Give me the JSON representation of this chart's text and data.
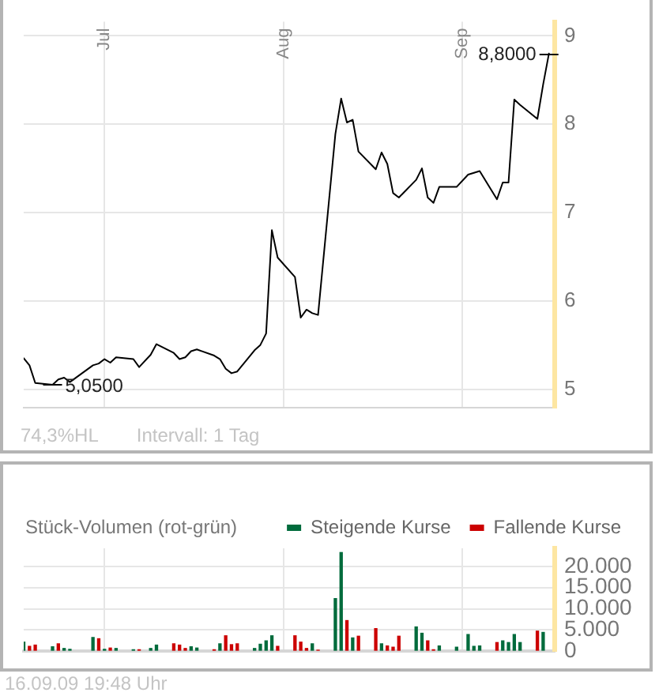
{
  "chart_data": [
    {
      "type": "line",
      "x": [
        "--06-17",
        "--06-18",
        "--06-19",
        "--06-22",
        "--06-23",
        "--06-24",
        "--06-25",
        "--06-29",
        "--06-30",
        "--07-01",
        "--07-02",
        "--07-03",
        "--07-06",
        "--07-07",
        "--07-09",
        "--07-10",
        "--07-13",
        "--07-14",
        "--07-15",
        "--07-16",
        "--07-17",
        "--07-20",
        "--07-21",
        "--07-22",
        "--07-23",
        "--07-24",
        "--07-27",
        "--07-28",
        "--07-29",
        "--07-30",
        "--07-31",
        "--08-03",
        "--08-04",
        "--08-05",
        "--08-06",
        "--08-07",
        "--08-10",
        "--08-11",
        "--08-12",
        "--08-13",
        "--08-14",
        "--08-17",
        "--08-18",
        "--08-19",
        "--08-20",
        "--08-21",
        "--08-24",
        "--08-25",
        "--08-26",
        "--08-27",
        "--08-28",
        "--08-31",
        "--09-02",
        "--09-03",
        "--09-04",
        "--09-07",
        "--09-08",
        "--09-09",
        "--09-10",
        "--09-11",
        "--09-14",
        "--09-15",
        "--09-16"
      ],
      "values": [
        5.35,
        5.27,
        5.07,
        5.05,
        5.11,
        5.13,
        5.08,
        5.27,
        5.29,
        5.34,
        5.3,
        5.36,
        5.34,
        5.25,
        5.39,
        5.51,
        5.41,
        5.34,
        5.36,
        5.43,
        5.45,
        5.38,
        5.34,
        5.23,
        5.18,
        5.2,
        5.44,
        5.5,
        5.63,
        6.8,
        6.49,
        6.27,
        5.81,
        5.9,
        5.86,
        5.84,
        7.89,
        8.29,
        8.02,
        8.05,
        7.69,
        7.49,
        7.68,
        7.55,
        7.22,
        7.17,
        7.37,
        7.5,
        7.17,
        7.11,
        7.29,
        7.29,
        7.43,
        7.45,
        7.47,
        7.15,
        7.34,
        7.34,
        8.28,
        8.22,
        8.06,
        8.45,
        8.8
      ],
      "color": "#000000",
      "xlim": [
        "--06-17",
        "--09-17"
      ],
      "xticks": [
        {
          "value": "--07-01",
          "label": "Jul"
        },
        {
          "value": "--08-01",
          "label": "Aug"
        },
        {
          "value": "--09-01",
          "label": "Sep"
        }
      ],
      "ylim": [
        4.79,
        9.16
      ],
      "yticks": [
        5,
        6,
        7,
        8,
        9
      ],
      "grid": true,
      "annotations": [
        {
          "text": "8,8000",
          "x": "--09-16",
          "y": 8.8
        },
        {
          "text": "5,0500",
          "x": "--06-22",
          "y": 5.05
        },
        "74,3%HL",
        "Intervall: 1 Tag"
      ]
    },
    {
      "type": "bar",
      "title": "Stück-Volumen (rot-grün)",
      "x": [
        "--06-17",
        "--06-18",
        "--06-19",
        "--06-22",
        "--06-23",
        "--06-24",
        "--06-25",
        "--06-29",
        "--06-30",
        "--07-01",
        "--07-02",
        "--07-03",
        "--07-06",
        "--07-07",
        "--07-09",
        "--07-10",
        "--07-13",
        "--07-14",
        "--07-15",
        "--07-16",
        "--07-17",
        "--07-20",
        "--07-21",
        "--07-22",
        "--07-23",
        "--07-24",
        "--07-27",
        "--07-28",
        "--07-29",
        "--07-30",
        "--07-31",
        "--08-03",
        "--08-04",
        "--08-05",
        "--08-06",
        "--08-07",
        "--08-10",
        "--08-11",
        "--08-12",
        "--08-13",
        "--08-14",
        "--08-17",
        "--08-18",
        "--08-19",
        "--08-20",
        "--08-21",
        "--08-24",
        "--08-25",
        "--08-26",
        "--08-27",
        "--08-28",
        "--08-31",
        "--09-02",
        "--09-03",
        "--09-04",
        "--09-07",
        "--09-08",
        "--09-09",
        "--09-10",
        "--09-11",
        "--09-14",
        "--09-15"
      ],
      "series": [
        {
          "name": "Steigende Kurse",
          "color": "#006b3c",
          "values": [
            2100,
            null,
            null,
            1000,
            null,
            600,
            400,
            3200,
            null,
            400,
            null,
            600,
            300,
            null,
            600,
            1400,
            null,
            null,
            null,
            1000,
            700,
            null,
            1700,
            null,
            null,
            null,
            600,
            1600,
            2400,
            3600,
            null,
            null,
            null,
            null,
            1700,
            null,
            12400,
            23300,
            null,
            3100,
            null,
            null,
            1700,
            null,
            null,
            null,
            5700,
            4200,
            null,
            null,
            1200,
            900,
            3900,
            1100,
            1200,
            null,
            2400,
            2000,
            3900,
            2000,
            null,
            4400
          ]
        },
        {
          "name": "Fallende Kurse",
          "color": "#cc0000",
          "values": [
            null,
            1100,
            1400,
            null,
            1700,
            null,
            null,
            null,
            2900,
            null,
            700,
            null,
            null,
            300,
            null,
            null,
            1700,
            1400,
            600,
            null,
            null,
            300,
            null,
            3600,
            1500,
            1700,
            null,
            null,
            null,
            null,
            1100,
            3600,
            2100,
            600,
            null,
            200,
            null,
            null,
            7200,
            null,
            3500,
            5300,
            null,
            1200,
            900,
            3500,
            null,
            null,
            2400,
            300,
            null,
            null,
            null,
            null,
            null,
            2000,
            null,
            null,
            null,
            null,
            4700,
            null
          ]
        }
      ],
      "stacked": true,
      "xlim": [
        "--06-17",
        "--09-17"
      ],
      "xticks": [
        {
          "value": "--07-01",
          "label": null
        },
        {
          "value": "--08-01",
          "label": null
        },
        {
          "value": "--09-01",
          "label": null
        }
      ],
      "ylim": [
        0,
        24300
      ],
      "yticks": [
        0,
        {
          "value": 5000,
          "label": "5.000"
        },
        {
          "value": 10000,
          "label": "10.000"
        },
        {
          "value": 15000,
          "label": "15.000"
        },
        {
          "value": 20000,
          "label": "20.000"
        }
      ],
      "grid": true,
      "legend": "top right",
      "tick_labels": "y",
      "annotations": [
        "16.09.09 19:48 Uhr"
      ]
    }
  ]
}
